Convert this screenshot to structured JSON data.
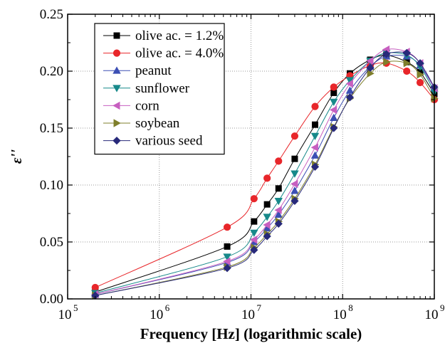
{
  "chart_data": {
    "type": "scatter",
    "xlabel": "Frequency [Hz] (logarithmic scale)",
    "ylabel": "ε''",
    "xscale": "log",
    "xlim": [
      100000,
      1000000000
    ],
    "ylim": [
      0,
      0.25
    ],
    "grid": true,
    "legend_position": "top-left",
    "x_tick_labels": [
      "10",
      "10",
      "10",
      "10",
      "10"
    ],
    "x_tick_exponents": [
      "5",
      "6",
      "7",
      "8",
      "9"
    ],
    "y_tick_labels": [
      "0.00",
      "0.05",
      "0.10",
      "0.15",
      "0.20",
      "0.25"
    ],
    "series": [
      {
        "name": "olive ac. = 1.2%",
        "color": "#000000",
        "marker": "square",
        "x": [
          200000,
          5500000,
          10800000,
          15000000,
          20000000,
          30000000,
          50000000,
          80000000,
          120000000,
          200000000,
          300000000,
          500000000,
          700000000,
          1000000000
        ],
        "y": [
          0.006,
          0.046,
          0.068,
          0.083,
          0.097,
          0.123,
          0.153,
          0.181,
          0.198,
          0.21,
          0.214,
          0.208,
          0.199,
          0.18
        ]
      },
      {
        "name": "olive ac. = 4.0%",
        "color": "#e8262a",
        "marker": "circle",
        "x": [
          200000,
          5500000,
          10800000,
          15000000,
          20000000,
          30000000,
          50000000,
          80000000,
          120000000,
          200000000,
          300000000,
          500000000,
          700000000,
          1000000000
        ],
        "y": [
          0.01,
          0.063,
          0.088,
          0.106,
          0.121,
          0.143,
          0.169,
          0.186,
          0.196,
          0.205,
          0.207,
          0.2,
          0.19,
          0.175
        ]
      },
      {
        "name": "peanut",
        "color": "#3c4fb4",
        "marker": "triangle-up",
        "x": [
          200000,
          5500000,
          10800000,
          15000000,
          20000000,
          30000000,
          50000000,
          80000000,
          120000000,
          200000000,
          300000000,
          500000000,
          700000000,
          1000000000
        ],
        "y": [
          0.004,
          0.032,
          0.05,
          0.062,
          0.074,
          0.095,
          0.126,
          0.159,
          0.183,
          0.204,
          0.213,
          0.213,
          0.205,
          0.185
        ]
      },
      {
        "name": "sunflower",
        "color": "#17898a",
        "marker": "triangle-down",
        "x": [
          200000,
          5500000,
          10800000,
          15000000,
          20000000,
          30000000,
          50000000,
          80000000,
          120000000,
          200000000,
          300000000,
          500000000,
          700000000,
          1000000000
        ],
        "y": [
          0.005,
          0.037,
          0.058,
          0.072,
          0.086,
          0.11,
          0.143,
          0.173,
          0.192,
          0.209,
          0.216,
          0.214,
          0.204,
          0.182
        ]
      },
      {
        "name": "corn",
        "color": "#c75fc0",
        "marker": "triangle-left",
        "x": [
          200000,
          5500000,
          10800000,
          15000000,
          20000000,
          30000000,
          50000000,
          80000000,
          120000000,
          200000000,
          300000000,
          500000000,
          700000000,
          1000000000
        ],
        "y": [
          0.004,
          0.033,
          0.052,
          0.065,
          0.078,
          0.101,
          0.133,
          0.166,
          0.189,
          0.209,
          0.219,
          0.217,
          0.207,
          0.185
        ]
      },
      {
        "name": "soybean",
        "color": "#7f7f2b",
        "marker": "triangle-right",
        "x": [
          200000,
          5500000,
          10800000,
          15000000,
          20000000,
          30000000,
          50000000,
          80000000,
          120000000,
          200000000,
          300000000,
          500000000,
          700000000,
          1000000000
        ],
        "y": [
          0.003,
          0.028,
          0.045,
          0.057,
          0.068,
          0.088,
          0.118,
          0.151,
          0.176,
          0.198,
          0.208,
          0.207,
          0.197,
          0.176
        ]
      },
      {
        "name": "various seed",
        "color": "#27297a",
        "marker": "diamond",
        "x": [
          200000,
          5500000,
          10800000,
          15000000,
          20000000,
          30000000,
          50000000,
          80000000,
          120000000,
          200000000,
          300000000,
          500000000,
          700000000,
          1000000000
        ],
        "y": [
          0.003,
          0.027,
          0.043,
          0.055,
          0.066,
          0.086,
          0.116,
          0.15,
          0.177,
          0.203,
          0.215,
          0.216,
          0.207,
          0.186
        ]
      }
    ]
  }
}
